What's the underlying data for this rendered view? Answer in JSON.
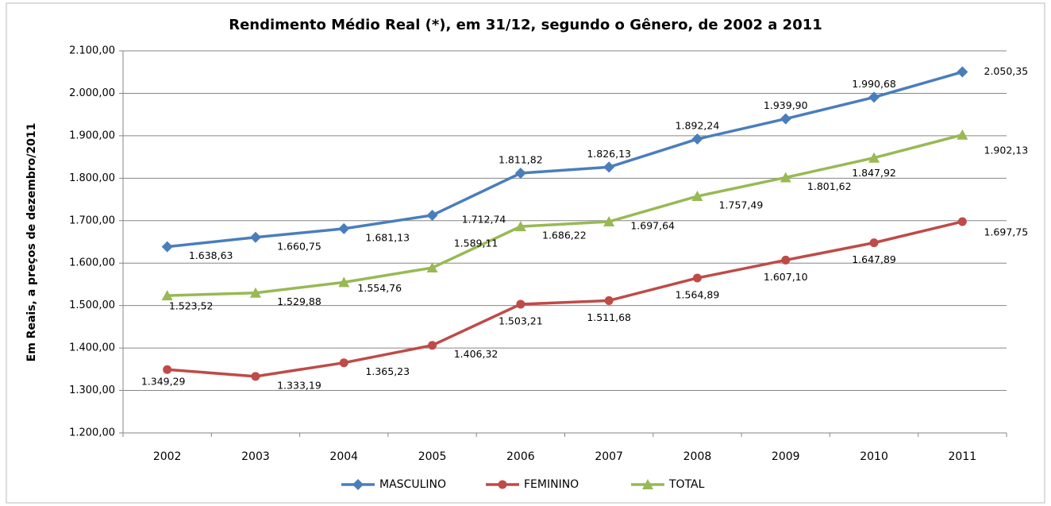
{
  "chart_data": {
    "type": "line",
    "title": "Rendimento Médio Real (*), em 31/12, segundo o Gênero, de 2002 a 2011",
    "y_label": "Em Reais, a preços de dezembro/2011",
    "categories": [
      "2002",
      "2003",
      "2004",
      "2005",
      "2006",
      "2007",
      "2008",
      "2009",
      "2010",
      "2011"
    ],
    "series": [
      {
        "name": "MASCULINO",
        "color": "#4a7ebb",
        "marker": "diamond",
        "values": [
          1638.63,
          1660.75,
          1681.13,
          1712.74,
          1811.82,
          1826.13,
          1892.24,
          1939.9,
          1990.68,
          2050.35
        ],
        "value_labels": [
          "1.638,63",
          "1.660,75",
          "1.681,13",
          "1.712,74",
          "1.811,82",
          "1.826,13",
          "1.892,24",
          "1.939,90",
          "1.990,68",
          "2.050,35"
        ]
      },
      {
        "name": "FEMININO",
        "color": "#be4b48",
        "marker": "circle",
        "values": [
          1349.29,
          1333.19,
          1365.23,
          1406.32,
          1503.21,
          1511.68,
          1564.89,
          1607.1,
          1647.89,
          1697.75
        ],
        "value_labels": [
          "1.349,29",
          "1.333,19",
          "1.365,23",
          "1.406,32",
          "1.503,21",
          "1.511,68",
          "1.564,89",
          "1.607,10",
          "1.647,89",
          "1.697,75"
        ]
      },
      {
        "name": "TOTAL",
        "color": "#98b954",
        "marker": "triangle",
        "values": [
          1523.52,
          1529.88,
          1554.76,
          1589.11,
          1686.22,
          1697.64,
          1757.49,
          1801.62,
          1847.92,
          1902.13
        ],
        "value_labels": [
          "1.523,52",
          "1.529,88",
          "1.554,76",
          "1.589,11",
          "1.686,22",
          "1.697,64",
          "1.757,49",
          "1.801,62",
          "1.847,92",
          "1.902,13"
        ]
      }
    ],
    "ylim": [
      1200,
      2100
    ],
    "yticks": [
      {
        "value": 1200,
        "label": "1.200,00"
      },
      {
        "value": 1300,
        "label": "1.300,00"
      },
      {
        "value": 1400,
        "label": "1.400,00"
      },
      {
        "value": 1500,
        "label": "1.500,00"
      },
      {
        "value": 1600,
        "label": "1.600,00"
      },
      {
        "value": 1700,
        "label": "1.700,00"
      },
      {
        "value": 1800,
        "label": "1.800,00"
      },
      {
        "value": 1900,
        "label": "1.900,00"
      },
      {
        "value": 2000,
        "label": "2.000,00"
      },
      {
        "value": 2100,
        "label": "2.100,00"
      }
    ],
    "grid": true,
    "legend": "bottom"
  }
}
